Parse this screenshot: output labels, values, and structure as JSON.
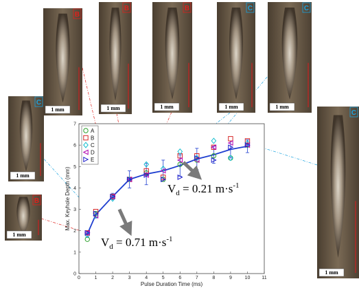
{
  "chart_data": {
    "type": "scatter",
    "xlabel": "Pulse Duration Time (ms)",
    "ylabel": "Max. Keyhole Depth (mm)",
    "xlim": [
      0,
      11
    ],
    "ylim": [
      0,
      7
    ],
    "xticks": [
      "0",
      "1",
      "2",
      "3",
      "4",
      "5",
      "6",
      "7",
      "8",
      "9",
      "10",
      "11"
    ],
    "yticks": [
      "0",
      "1",
      "2",
      "3",
      "4",
      "5",
      "6",
      "7"
    ],
    "legend_position": "top-left",
    "series": [
      {
        "name": "A",
        "marker": "circle",
        "color": "#2ca02c",
        "x": [
          0.5,
          1,
          2,
          3,
          4,
          5,
          6,
          7,
          8,
          9,
          10
        ],
        "y": [
          1.6,
          2.8,
          3.6,
          4.4,
          4.7,
          4.4,
          5.1,
          5.3,
          5.5,
          5.4,
          6.0
        ]
      },
      {
        "name": "B",
        "marker": "square",
        "color": "#d62728",
        "x": [
          0.5,
          1,
          2,
          3,
          4,
          5,
          6,
          7,
          8,
          9,
          10
        ],
        "y": [
          1.9,
          2.9,
          3.6,
          4.4,
          4.8,
          4.5,
          5.5,
          5.5,
          5.9,
          6.3,
          6.2
        ]
      },
      {
        "name": "C",
        "marker": "diamond",
        "color": "#17becf",
        "x": [
          0.5,
          1,
          2,
          3,
          4,
          5,
          6,
          7,
          8,
          9,
          10
        ],
        "y": [
          1.8,
          2.7,
          3.5,
          4.4,
          5.1,
          4.9,
          5.7,
          5.4,
          6.2,
          5.4,
          6.1
        ]
      },
      {
        "name": "D",
        "marker": "triangle-left",
        "color": "#b000b0",
        "x": [
          0.5,
          1,
          2,
          3,
          4,
          5,
          6,
          7,
          8,
          9,
          10
        ],
        "y": [
          1.9,
          2.7,
          3.6,
          4.4,
          4.6,
          4.8,
          5.3,
          5.3,
          5.9,
          6.1,
          6.0
        ]
      },
      {
        "name": "E",
        "marker": "triangle-right",
        "color": "#1f1fcc",
        "x": [
          0.5,
          1,
          2,
          3,
          4,
          5,
          6,
          7,
          8,
          9,
          10
        ],
        "y": [
          1.9,
          2.8,
          3.6,
          4.4,
          4.6,
          4.4,
          4.5,
          5.4,
          5.3,
          5.9,
          6.0
        ]
      }
    ],
    "mean_line": {
      "color": "#1f3fd0",
      "x": [
        0.5,
        1,
        2,
        3,
        4,
        5,
        6,
        7,
        8,
        9,
        10
      ],
      "y": [
        1.85,
        2.75,
        3.6,
        4.4,
        4.65,
        4.8,
        5.05,
        5.35,
        5.55,
        5.8,
        5.95
      ],
      "err": [
        0.15,
        0.15,
        0.15,
        0.4,
        0.5,
        0.5,
        0.5,
        0.5,
        0.4,
        0.4,
        0.3
      ]
    },
    "annotations": [
      {
        "base": "V",
        "sub": "d",
        "text": " = 0.71 m·s",
        "sup": "-1"
      },
      {
        "base": "V",
        "sub": "d",
        "text": " = 0.21 m·s",
        "sup": "-1"
      }
    ]
  },
  "photos": [
    {
      "scale": "1 mm",
      "tag": "B",
      "tag_color": "#e0201b",
      "x": 0.5
    },
    {
      "scale": "1 mm",
      "tag": "C",
      "tag_color": "#1aa3e0",
      "x": 1
    },
    {
      "scale": "1 mm",
      "tag": "B",
      "tag_color": "#e0201b",
      "x": 2
    },
    {
      "scale": "1 mm",
      "tag": "B",
      "tag_color": "#e0201b",
      "x": 3
    },
    {
      "scale": "1 mm",
      "tag": "B",
      "tag_color": "#e0201b",
      "x": 4
    },
    {
      "scale": "1 mm",
      "tag": "C",
      "tag_color": "#1aa3e0",
      "x": 6
    },
    {
      "scale": "1 mm",
      "tag": "C",
      "tag_color": "#1aa3e0",
      "x": 8
    },
    {
      "scale": "1 mm",
      "tag": "C",
      "tag_color": "#1aa3e0",
      "x": 10
    }
  ]
}
